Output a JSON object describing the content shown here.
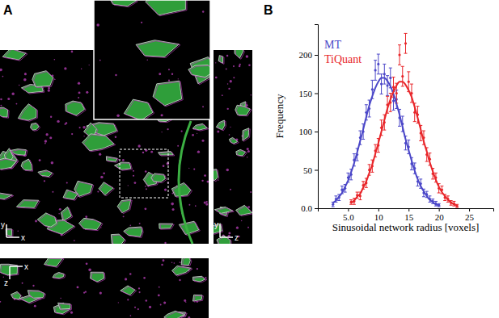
{
  "panel_a": {
    "label": "A",
    "views": [
      {
        "axes": [
          "y",
          "x"
        ]
      },
      {
        "axes": [
          "y",
          "z"
        ]
      },
      {
        "axes": [
          "z",
          "x"
        ]
      }
    ]
  },
  "chart_data": {
    "type": "scatter",
    "panel_label": "B",
    "xlabel": "Sinusoidal network radius [voxels]",
    "ylabel": "Frequency",
    "xlim": [
      0,
      29
    ],
    "ylim": [
      0,
      240
    ],
    "xticks": [
      {
        "value": 5,
        "label": "5.0"
      },
      10,
      15,
      20,
      25
    ],
    "yticks": [
      {
        "value": 0,
        "label": "0.0"
      },
      50,
      100,
      150,
      200
    ],
    "legend": "upper left",
    "series": [
      {
        "name": "MT",
        "color": "#4b47c8",
        "type": "scatter",
        "marker": "circle",
        "x": [
          2.5,
          3,
          3.5,
          4,
          4.5,
          5,
          5.5,
          6,
          6.5,
          7,
          7.5,
          8,
          8.5,
          9,
          9.5,
          10,
          10.5,
          11,
          11.5,
          12,
          12.5,
          13,
          13.5,
          14,
          14.5,
          15,
          15.5,
          16,
          16.5,
          17,
          17.5,
          18,
          18.5,
          19,
          19.5,
          20
        ],
        "values": [
          5,
          12,
          14,
          24,
          26,
          40,
          44,
          63,
          70,
          92,
          100,
          125,
          130,
          155,
          180,
          188,
          162,
          175,
          160,
          170,
          140,
          142,
          118,
          110,
          85,
          80,
          58,
          52,
          35,
          32,
          20,
          18,
          12,
          9,
          6,
          4
        ],
        "errors": [
          3,
          4,
          4,
          5,
          5,
          6,
          7,
          8,
          8,
          9,
          10,
          10,
          11,
          12,
          13,
          13,
          13,
          13,
          13,
          13,
          12,
          12,
          11,
          10,
          9,
          9,
          8,
          7,
          6,
          6,
          5,
          4,
          4,
          3,
          3,
          2
        ]
      },
      {
        "name": "TiQuant",
        "color": "#e8262a",
        "type": "scatter",
        "marker": "circle",
        "x": [
          5.5,
          6,
          6.5,
          7,
          7.5,
          8,
          8.5,
          9,
          9.5,
          10,
          10.5,
          11,
          11.5,
          12,
          12.5,
          13,
          13.5,
          14,
          14.5,
          15,
          15.5,
          16,
          16.5,
          17,
          17.5,
          18,
          18.5,
          19,
          19.5,
          20,
          20.5,
          21,
          21.5,
          22,
          22.5,
          23
        ],
        "values": [
          8,
          9,
          17,
          16,
          30,
          33,
          50,
          55,
          75,
          82,
          105,
          112,
          135,
          138,
          158,
          150,
          200,
          172,
          215,
          165,
          150,
          125,
          122,
          98,
          92,
          70,
          64,
          45,
          40,
          26,
          24,
          14,
          12,
          7,
          6,
          3
        ],
        "errors": [
          3,
          4,
          4,
          5,
          5,
          6,
          7,
          8,
          8,
          9,
          10,
          10,
          11,
          12,
          13,
          13,
          13,
          13,
          13,
          13,
          12,
          12,
          11,
          10,
          9,
          9,
          8,
          7,
          6,
          6,
          5,
          4,
          4,
          3,
          3,
          2
        ]
      },
      {
        "type": "line",
        "color": "#4b47c8",
        "line_style": "solid",
        "x": [
          2.5,
          3,
          3.5,
          4,
          4.5,
          5,
          5.5,
          6,
          6.5,
          7,
          7.5,
          8,
          8.5,
          9,
          9.5,
          10,
          10.5,
          11,
          11.5,
          12,
          12.5,
          13,
          13.5,
          14,
          14.5,
          15,
          15.5,
          16,
          16.5,
          17,
          17.5,
          18,
          18.5,
          19,
          19.5,
          20
        ],
        "values": [
          7,
          10,
          15,
          20,
          28,
          36,
          47,
          59,
          73,
          88,
          103,
          119,
          134,
          146,
          157,
          165,
          170,
          170,
          166,
          159,
          149,
          136,
          122,
          106,
          90,
          76,
          62,
          49,
          38,
          29,
          22,
          16,
          11,
          8,
          5,
          4
        ]
      },
      {
        "type": "line",
        "color": "#e8262a",
        "line_style": "solid",
        "x": [
          5.5,
          6,
          6.5,
          7,
          7.5,
          8,
          8.5,
          9,
          9.5,
          10,
          10.5,
          11,
          11.5,
          12,
          12.5,
          13,
          13.5,
          14,
          14.5,
          15,
          15.5,
          16,
          16.5,
          17,
          17.5,
          18,
          18.5,
          19,
          19.5,
          20,
          20.5,
          21,
          21.5,
          22,
          22.5,
          23
        ],
        "values": [
          7,
          10,
          15,
          19,
          27,
          35,
          46,
          57,
          71,
          85,
          100,
          115,
          130,
          142,
          152,
          160,
          165,
          165,
          161,
          154,
          145,
          132,
          118,
          103,
          87,
          74,
          60,
          48,
          37,
          28,
          21,
          16,
          11,
          8,
          5,
          4
        ]
      }
    ]
  }
}
